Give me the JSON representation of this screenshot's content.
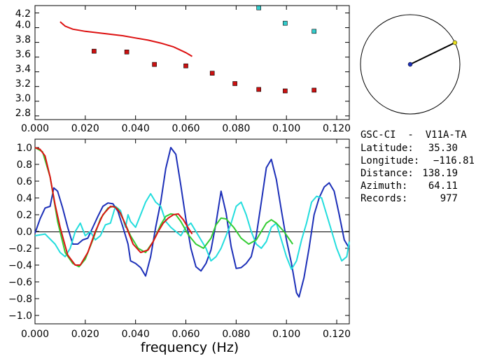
{
  "chart_data": [
    {
      "type": "scatter",
      "xlim": [
        0.0,
        0.125
      ],
      "ylim": [
        2.75,
        4.3
      ],
      "xticks": [
        "0.000",
        "0.020",
        "0.040",
        "0.060",
        "0.080",
        "0.100",
        "0.120"
      ],
      "yticks": [
        "2.8",
        "3.0",
        "3.2",
        "3.4",
        "3.6",
        "3.8",
        "4.0",
        "4.2"
      ],
      "grid": false,
      "series": [
        {
          "kind": "line",
          "color": "#dd1111",
          "x": [
            0.01,
            0.012,
            0.015,
            0.02,
            0.025,
            0.03,
            0.035,
            0.04,
            0.045,
            0.05,
            0.055,
            0.06,
            0.0625
          ],
          "y": [
            4.08,
            4.02,
            3.98,
            3.95,
            3.93,
            3.91,
            3.89,
            3.86,
            3.83,
            3.79,
            3.74,
            3.66,
            3.61
          ]
        },
        {
          "kind": "markers",
          "color": "#cc1111",
          "x": [
            0.0235,
            0.0365,
            0.0475,
            0.06,
            0.0705,
            0.0795,
            0.089,
            0.0995,
            0.111
          ],
          "y": [
            3.68,
            3.67,
            3.5,
            3.48,
            3.38,
            3.24,
            3.16,
            3.14,
            3.15
          ]
        },
        {
          "kind": "markers",
          "color": "#33cccc",
          "x": [
            0.089,
            0.0995,
            0.111
          ],
          "y": [
            4.27,
            4.06,
            3.95
          ]
        }
      ]
    },
    {
      "type": "line",
      "xlim": [
        0.0,
        0.125
      ],
      "ylim": [
        -1.1,
        1.1
      ],
      "xticks": [
        "0.000",
        "0.020",
        "0.040",
        "0.060",
        "0.080",
        "0.100",
        "0.120"
      ],
      "yticks": [
        "1.0",
        "0.8",
        "0.6",
        "0.4",
        "0.2",
        "0.0",
        "−0.2",
        "−0.4",
        "−0.6",
        "−0.8",
        "−1.0"
      ],
      "xlabel": "frequency (Hz)",
      "grid": false,
      "zero_line": true,
      "series": [
        {
          "color": "#1c2fb8",
          "x": [
            0.0,
            0.002,
            0.004,
            0.006,
            0.0075,
            0.009,
            0.011,
            0.013,
            0.015,
            0.017,
            0.019,
            0.021,
            0.023,
            0.025,
            0.027,
            0.029,
            0.031,
            0.033,
            0.035,
            0.037,
            0.038,
            0.04,
            0.042,
            0.044,
            0.046,
            0.048,
            0.05,
            0.052,
            0.054,
            0.056,
            0.058,
            0.06,
            0.062,
            0.064,
            0.066,
            0.068,
            0.07,
            0.072,
            0.074,
            0.076,
            0.078,
            0.08,
            0.082,
            0.084,
            0.086,
            0.088,
            0.09,
            0.092,
            0.094,
            0.096,
            0.098,
            0.1,
            0.102,
            0.104,
            0.105,
            0.107,
            0.109,
            0.111,
            0.113,
            0.115,
            0.117,
            0.119,
            0.121,
            0.123,
            0.125
          ],
          "y": [
            -0.02,
            0.15,
            0.28,
            0.3,
            0.52,
            0.48,
            0.28,
            0.05,
            -0.15,
            -0.15,
            -0.1,
            -0.08,
            0.05,
            0.18,
            0.3,
            0.34,
            0.33,
            0.24,
            0.05,
            -0.15,
            -0.35,
            -0.38,
            -0.43,
            -0.53,
            -0.3,
            0.05,
            0.35,
            0.75,
            1.0,
            0.92,
            0.55,
            0.15,
            -0.2,
            -0.42,
            -0.47,
            -0.38,
            -0.22,
            0.1,
            0.48,
            0.22,
            -0.18,
            -0.44,
            -0.43,
            -0.38,
            -0.3,
            -0.05,
            0.35,
            0.76,
            0.86,
            0.62,
            0.25,
            -0.1,
            -0.38,
            -0.73,
            -0.78,
            -0.55,
            -0.2,
            0.2,
            0.4,
            0.53,
            0.58,
            0.48,
            0.2,
            -0.1,
            -0.2
          ]
        },
        {
          "color": "#22dddd",
          "x": [
            0.0,
            0.004,
            0.008,
            0.01,
            0.012,
            0.014,
            0.016,
            0.018,
            0.02,
            0.022,
            0.024,
            0.026,
            0.028,
            0.03,
            0.032,
            0.034,
            0.036,
            0.037,
            0.038,
            0.04,
            0.042,
            0.044,
            0.046,
            0.048,
            0.05,
            0.052,
            0.054,
            0.056,
            0.058,
            0.06,
            0.062,
            0.064,
            0.066,
            0.068,
            0.07,
            0.072,
            0.074,
            0.076,
            0.078,
            0.08,
            0.082,
            0.084,
            0.086,
            0.088,
            0.09,
            0.092,
            0.094,
            0.096,
            0.098,
            0.1,
            0.102,
            0.104,
            0.106,
            0.108,
            0.11,
            0.112,
            0.114,
            0.116,
            0.118,
            0.12,
            0.122,
            0.124,
            0.125
          ],
          "y": [
            -0.05,
            -0.03,
            -0.15,
            -0.25,
            -0.3,
            -0.2,
            0.0,
            0.1,
            -0.05,
            0.0,
            -0.1,
            -0.05,
            0.08,
            0.1,
            0.3,
            0.25,
            0.05,
            0.2,
            0.12,
            0.05,
            0.2,
            0.35,
            0.45,
            0.35,
            0.3,
            0.12,
            0.05,
            0.0,
            -0.05,
            0.05,
            0.1,
            0.0,
            -0.1,
            -0.2,
            -0.35,
            -0.3,
            -0.2,
            -0.05,
            0.1,
            0.3,
            0.35,
            0.2,
            0.0,
            -0.15,
            -0.2,
            -0.12,
            0.05,
            0.1,
            -0.1,
            -0.3,
            -0.45,
            -0.35,
            -0.1,
            0.1,
            0.35,
            0.42,
            0.4,
            0.2,
            0.0,
            -0.2,
            -0.35,
            -0.3,
            -0.12
          ]
        },
        {
          "color": "#33cc33",
          "x": [
            0.0,
            0.003,
            0.006,
            0.009,
            0.012,
            0.015,
            0.0175,
            0.02,
            0.023,
            0.026,
            0.029,
            0.031,
            0.033,
            0.035,
            0.038,
            0.041,
            0.044,
            0.047,
            0.05,
            0.052,
            0.054,
            0.056,
            0.058,
            0.061,
            0.064,
            0.067,
            0.07,
            0.072,
            0.074,
            0.076,
            0.079,
            0.082,
            0.085,
            0.088,
            0.09,
            0.092,
            0.094,
            0.096,
            0.099,
            0.1025
          ],
          "y": [
            1.0,
            0.95,
            0.65,
            0.12,
            -0.25,
            -0.38,
            -0.42,
            -0.33,
            -0.1,
            0.15,
            0.28,
            0.3,
            0.27,
            0.15,
            -0.05,
            -0.2,
            -0.25,
            -0.12,
            0.08,
            0.18,
            0.21,
            0.2,
            0.12,
            -0.04,
            -0.15,
            -0.2,
            -0.08,
            0.08,
            0.16,
            0.15,
            0.05,
            -0.08,
            -0.15,
            -0.1,
            0.0,
            0.1,
            0.14,
            0.1,
            0.0,
            -0.15
          ]
        },
        {
          "color": "#dd1111",
          "x": [
            0.0,
            0.002,
            0.004,
            0.006,
            0.008,
            0.01,
            0.013,
            0.016,
            0.018,
            0.021,
            0.024,
            0.027,
            0.03,
            0.032,
            0.034,
            0.036,
            0.039,
            0.042,
            0.045,
            0.047,
            0.049,
            0.051,
            0.053,
            0.055,
            0.057,
            0.059,
            0.061,
            0.0625
          ],
          "y": [
            1.0,
            0.98,
            0.9,
            0.65,
            0.32,
            0.05,
            -0.28,
            -0.4,
            -0.4,
            -0.25,
            0.0,
            0.2,
            0.3,
            0.29,
            0.22,
            0.08,
            -0.15,
            -0.25,
            -0.22,
            -0.12,
            0.0,
            0.1,
            0.16,
            0.2,
            0.21,
            0.14,
            0.04,
            -0.03
          ]
        }
      ]
    }
  ],
  "azimuth_dial": {
    "azimuth_deg": 64.11,
    "line_color": "#000000",
    "center_color": "#1c2fb8",
    "end_color": "#e8e020"
  },
  "info": {
    "station": "GSC-CI  -  V11A-TA",
    "latitude_label": "Latitude:",
    "latitude_value": "35.30",
    "longitude_label": "Longitude:",
    "longitude_value": "−116.81",
    "distance_label": "Distance:",
    "distance_value": "138.19",
    "azimuth_label": "Azimuth:",
    "azimuth_value": "64.11",
    "records_label": "Records:",
    "records_value": "977"
  }
}
